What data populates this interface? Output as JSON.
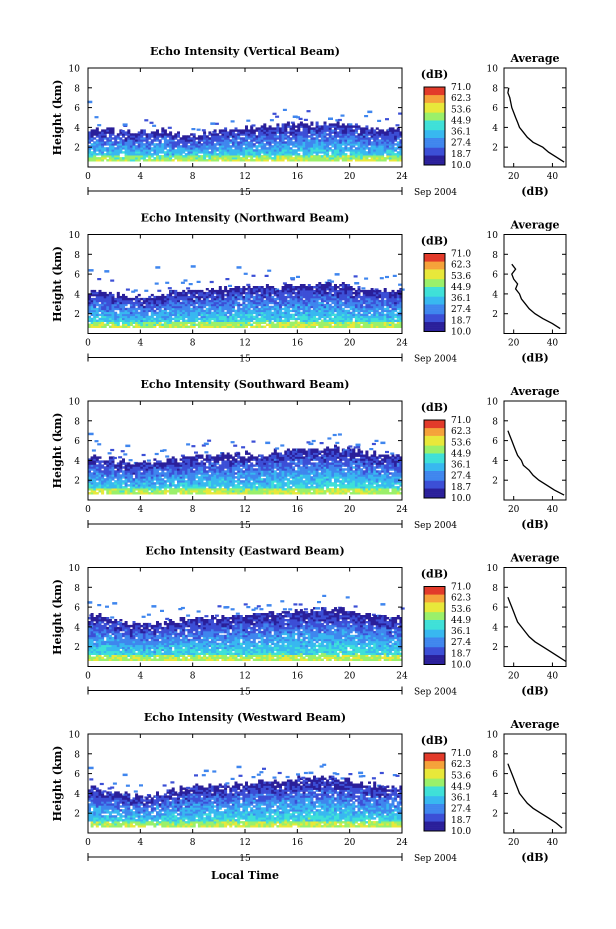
{
  "figure": {
    "x_label": "Local Time",
    "date_label": "Sep 2004",
    "date_day": "15",
    "colorbar_unit": "(dB)",
    "colorbar_ticks": [
      "71.0",
      "62.3",
      "53.6",
      "44.9",
      "36.1",
      "27.4",
      "18.7",
      "10.0"
    ],
    "profile_title": "Average",
    "profile_xlabel": "(dB)",
    "colormap": [
      "#2a1f9a",
      "#3c4fd6",
      "#3f86ee",
      "#38b8f0",
      "#3fe0d8",
      "#9af06a",
      "#e8e83a",
      "#f5a23a",
      "#e23b2a"
    ]
  },
  "chart_data": [
    {
      "type": "heatmap",
      "title": "Echo Intensity (Vertical Beam)",
      "ylabel": "Height (km)",
      "xlim": [
        0,
        24
      ],
      "ylim": [
        0,
        10
      ],
      "x_ticks": [
        0,
        4,
        8,
        12,
        16,
        20,
        24
      ],
      "y_ticks": [
        2,
        4,
        6,
        8,
        10
      ],
      "colorbar_range_db": [
        10.0,
        71.0
      ],
      "echo_top_km": [
        3.8,
        3.7,
        3.6,
        3.5,
        3.5,
        3.6,
        3.4,
        3.2,
        3.3,
        3.5,
        3.6,
        3.8,
        3.9,
        4.0,
        4.1,
        4.2,
        4.3,
        4.4,
        4.3,
        4.2,
        4.0,
        3.9,
        3.8,
        3.7
      ],
      "outliers": [
        [
          0.1,
          6.7
        ],
        [
          2.8,
          4.4
        ],
        [
          9.5,
          4.5
        ],
        [
          15.8,
          5.2
        ],
        [
          18.5,
          5.0
        ],
        [
          21.5,
          5.7
        ]
      ],
      "profile": {
        "xlim": [
          15,
          47
        ],
        "x_ticks": [
          20,
          40
        ],
        "y_ticks": [
          2,
          4,
          6,
          8,
          10
        ],
        "height_km": [
          0.5,
          1.0,
          1.5,
          2.0,
          2.5,
          3.0,
          3.5,
          4.0,
          4.5,
          5.0,
          5.5,
          6.0,
          6.5,
          7.0,
          7.5,
          8.0
        ],
        "db": [
          46,
          42,
          38,
          35,
          30,
          27,
          25,
          23,
          22,
          21,
          20,
          19,
          18.5,
          18,
          17,
          17.5
        ]
      }
    },
    {
      "type": "heatmap",
      "title": "Echo Intensity (Northward Beam)",
      "ylabel": "Height (km)",
      "xlim": [
        0,
        24
      ],
      "ylim": [
        0,
        10
      ],
      "x_ticks": [
        0,
        4,
        8,
        12,
        16,
        20,
        24
      ],
      "y_ticks": [
        2,
        4,
        6,
        8,
        10
      ],
      "colorbar_range_db": [
        10.0,
        71.0
      ],
      "echo_top_km": [
        4.2,
        4.0,
        3.8,
        3.7,
        3.6,
        3.8,
        4.0,
        4.2,
        4.3,
        4.4,
        4.5,
        4.6,
        4.7,
        4.7,
        4.6,
        4.7,
        4.8,
        4.9,
        5.0,
        4.8,
        4.6,
        4.4,
        4.3,
        4.2
      ],
      "outliers": [
        [
          0.2,
          6.5
        ],
        [
          1.4,
          6.4
        ],
        [
          5.3,
          6.8
        ],
        [
          8.0,
          6.9
        ],
        [
          11.5,
          6.8
        ],
        [
          15.6,
          5.7
        ],
        [
          19.0,
          6.1
        ],
        [
          20.5,
          5.2
        ]
      ],
      "profile": {
        "xlim": [
          15,
          47
        ],
        "x_ticks": [
          20,
          40
        ],
        "y_ticks": [
          2,
          4,
          6,
          8,
          10
        ],
        "height_km": [
          0.5,
          1.0,
          1.5,
          2.0,
          2.5,
          3.0,
          3.5,
          4.0,
          4.5,
          5.0,
          5.5,
          6.0,
          6.5,
          7.0
        ],
        "db": [
          44,
          40,
          35,
          31,
          28,
          26,
          24,
          23,
          21,
          22,
          20,
          19,
          21,
          19
        ]
      }
    },
    {
      "type": "heatmap",
      "title": "Echo Intensity (Southward Beam)",
      "ylabel": "Height (km)",
      "xlim": [
        0,
        24
      ],
      "ylim": [
        0,
        10
      ],
      "x_ticks": [
        0,
        4,
        8,
        12,
        16,
        20,
        24
      ],
      "y_ticks": [
        2,
        4,
        6,
        8,
        10
      ],
      "colorbar_range_db": [
        10.0,
        71.0
      ],
      "echo_top_km": [
        4.3,
        4.0,
        3.8,
        3.6,
        3.7,
        3.9,
        4.1,
        4.2,
        4.3,
        4.4,
        4.5,
        4.6,
        4.7,
        4.6,
        4.8,
        5.0,
        5.1,
        5.2,
        5.3,
        5.1,
        4.9,
        4.7,
        4.5,
        4.4
      ],
      "outliers": [
        [
          0.2,
          6.8
        ],
        [
          3.0,
          5.6
        ],
        [
          9.0,
          5.8
        ],
        [
          13.7,
          5.9
        ],
        [
          17.0,
          5.8
        ],
        [
          20.6,
          5.7
        ],
        [
          22.5,
          5.9
        ]
      ],
      "profile": {
        "xlim": [
          15,
          47
        ],
        "x_ticks": [
          20,
          40
        ],
        "y_ticks": [
          2,
          4,
          6,
          8,
          10
        ],
        "height_km": [
          0.5,
          1.0,
          1.5,
          2.0,
          2.5,
          3.0,
          3.5,
          4.0,
          4.5,
          5.0,
          5.5,
          6.0,
          6.5,
          7.0
        ],
        "db": [
          46,
          41,
          37,
          33,
          30,
          28,
          25,
          24,
          22,
          21,
          20,
          19,
          18,
          17
        ]
      }
    },
    {
      "type": "heatmap",
      "title": "Echo Intensity (Eastward Beam)",
      "ylabel": "Height (km)",
      "xlim": [
        0,
        24
      ],
      "ylim": [
        0,
        10
      ],
      "x_ticks": [
        0,
        4,
        8,
        12,
        16,
        20,
        24
      ],
      "y_ticks": [
        2,
        4,
        6,
        8,
        10
      ],
      "colorbar_range_db": [
        10.0,
        71.0
      ],
      "echo_top_km": [
        5.0,
        4.7,
        4.5,
        4.3,
        4.2,
        4.3,
        4.4,
        4.6,
        4.8,
        4.9,
        5.0,
        5.1,
        5.2,
        5.3,
        5.4,
        5.5,
        5.6,
        5.7,
        5.8,
        5.6,
        5.4,
        5.2,
        5.0,
        4.9
      ],
      "outliers": [
        [
          0.1,
          6.6
        ],
        [
          2.0,
          6.5
        ],
        [
          5.0,
          6.2
        ],
        [
          10.5,
          6.1
        ],
        [
          13.8,
          6.3
        ],
        [
          17.5,
          6.0
        ],
        [
          22.5,
          6.4
        ]
      ],
      "profile": {
        "xlim": [
          15,
          47
        ],
        "x_ticks": [
          20,
          40
        ],
        "y_ticks": [
          2,
          4,
          6,
          8,
          10
        ],
        "height_km": [
          0.5,
          1.0,
          1.5,
          2.0,
          2.5,
          3.0,
          3.5,
          4.0,
          4.5,
          5.0,
          5.5,
          6.0,
          6.5,
          7.0
        ],
        "db": [
          47,
          43,
          39,
          35,
          31,
          28,
          26,
          24,
          22,
          21,
          20,
          19,
          18,
          17
        ]
      }
    },
    {
      "type": "heatmap",
      "title": "Echo Intensity (Westward Beam)",
      "ylabel": "Height (km)",
      "xlim": [
        0,
        24
      ],
      "ylim": [
        0,
        10
      ],
      "x_ticks": [
        0,
        4,
        8,
        12,
        16,
        20,
        24
      ],
      "y_ticks": [
        2,
        4,
        6,
        8,
        10
      ],
      "colorbar_range_db": [
        10.0,
        71.0
      ],
      "echo_top_km": [
        4.4,
        4.1,
        3.9,
        3.7,
        3.7,
        3.9,
        4.2,
        4.4,
        4.6,
        4.7,
        4.8,
        4.9,
        5.0,
        5.1,
        5.2,
        5.3,
        5.4,
        5.5,
        5.6,
        5.3,
        5.0,
        4.8,
        4.6,
        4.5
      ],
      "outliers": [
        [
          0.2,
          6.7
        ],
        [
          2.8,
          6.0
        ],
        [
          9.0,
          6.4
        ],
        [
          11.5,
          6.8
        ],
        [
          17.0,
          6.2
        ],
        [
          20.8,
          6.2
        ]
      ],
      "profile": {
        "xlim": [
          15,
          47
        ],
        "x_ticks": [
          20,
          40
        ],
        "y_ticks": [
          2,
          4,
          6,
          8,
          10
        ],
        "height_km": [
          0.5,
          1.0,
          1.5,
          2.0,
          2.5,
          3.0,
          3.5,
          4.0,
          4.5,
          5.0,
          5.5,
          6.0,
          6.5,
          7.0
        ],
        "db": [
          45,
          42,
          38,
          34,
          30,
          27,
          25,
          23,
          22,
          21,
          20,
          19,
          18,
          17
        ]
      }
    }
  ]
}
